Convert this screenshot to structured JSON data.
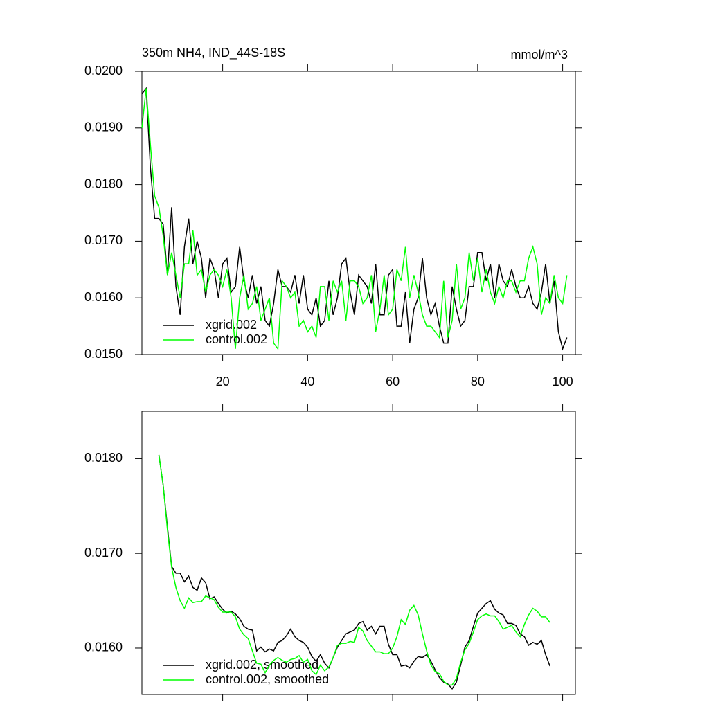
{
  "chart_data": [
    {
      "type": "line",
      "title": "350m NH4, IND_44S-18S",
      "units": "mmol/m^3",
      "x": [
        1,
        2,
        3,
        4,
        5,
        6,
        7,
        8,
        9,
        10,
        11,
        12,
        13,
        14,
        15,
        16,
        17,
        18,
        19,
        20,
        21,
        22,
        23,
        24,
        25,
        26,
        27,
        28,
        29,
        30,
        31,
        32,
        33,
        34,
        35,
        36,
        37,
        38,
        39,
        40,
        41,
        42,
        43,
        44,
        45,
        46,
        47,
        48,
        49,
        50,
        51,
        52,
        53,
        54,
        55,
        56,
        57,
        58,
        59,
        60,
        61,
        62,
        63,
        64,
        65,
        66,
        67,
        68,
        69,
        70,
        71,
        72,
        73,
        74,
        75,
        76,
        77,
        78,
        79,
        80,
        81,
        82,
        83,
        84,
        85,
        86,
        87,
        88,
        89,
        90,
        91,
        92,
        93,
        94,
        95,
        96,
        97,
        98,
        99,
        100,
        101
      ],
      "xlim": [
        1,
        103
      ],
      "xticks": [
        20,
        40,
        60,
        80,
        100
      ],
      "ylim": [
        0.015,
        0.02
      ],
      "yticks": [
        {
          "value": 0.015,
          "label": "0.0150"
        },
        {
          "value": 0.016,
          "label": "0.0160"
        },
        {
          "value": 0.017,
          "label": "0.0170"
        },
        {
          "value": 0.018,
          "label": "0.0180"
        },
        {
          "value": 0.019,
          "label": "0.0190"
        },
        {
          "value": 0.02,
          "label": "0.0200"
        }
      ],
      "legend": "lower left",
      "series": [
        {
          "name": "xgrid.002",
          "color": "#000000",
          "values": [
            0.0196,
            0.0197,
            0.0183,
            0.0174,
            0.0174,
            0.0173,
            0.0164,
            0.0176,
            0.0162,
            0.0157,
            0.0169,
            0.0174,
            0.0166,
            0.017,
            0.0167,
            0.016,
            0.0167,
            0.0165,
            0.016,
            0.0166,
            0.0167,
            0.0161,
            0.0162,
            0.0169,
            0.0163,
            0.016,
            0.0164,
            0.0159,
            0.0162,
            0.0156,
            0.0155,
            0.0159,
            0.0165,
            0.0162,
            0.0162,
            0.0161,
            0.0164,
            0.0159,
            0.0164,
            0.0158,
            0.0157,
            0.016,
            0.0155,
            0.0156,
            0.0163,
            0.0157,
            0.016,
            0.0166,
            0.0167,
            0.0161,
            0.0157,
            0.0164,
            0.0163,
            0.0162,
            0.0159,
            0.0166,
            0.0157,
            0.0157,
            0.0164,
            0.0165,
            0.0155,
            0.0155,
            0.0161,
            0.0152,
            0.0158,
            0.016,
            0.0167,
            0.016,
            0.0157,
            0.0159,
            0.0155,
            0.0152,
            0.0152,
            0.0162,
            0.0158,
            0.0155,
            0.0156,
            0.0162,
            0.0162,
            0.0168,
            0.0168,
            0.0163,
            0.0166,
            0.016,
            0.0166,
            0.0163,
            0.0162,
            0.0165,
            0.0162,
            0.016,
            0.016,
            0.0162,
            0.0159,
            0.0158,
            0.0161,
            0.0166,
            0.0159,
            0.0163,
            0.0154,
            0.0151,
            0.0153
          ]
        },
        {
          "name": "control.002",
          "color": "#00ff00",
          "values": [
            0.019,
            0.0197,
            0.0187,
            0.0178,
            0.0176,
            0.0171,
            0.0164,
            0.0168,
            0.0164,
            0.016,
            0.0166,
            0.0166,
            0.0172,
            0.0164,
            0.0165,
            0.0161,
            0.0164,
            0.0165,
            0.0164,
            0.0162,
            0.0165,
            0.016,
            0.0151,
            0.016,
            0.0164,
            0.0158,
            0.0159,
            0.0162,
            0.0156,
            0.0158,
            0.016,
            0.0152,
            0.0151,
            0.0163,
            0.0162,
            0.016,
            0.0161,
            0.0155,
            0.0156,
            0.0154,
            0.0155,
            0.0153,
            0.0162,
            0.0162,
            0.0156,
            0.0163,
            0.0161,
            0.0163,
            0.0156,
            0.0163,
            0.0163,
            0.0162,
            0.0159,
            0.016,
            0.0164,
            0.0154,
            0.0158,
            0.0164,
            0.0157,
            0.0158,
            0.0165,
            0.0163,
            0.0169,
            0.016,
            0.0164,
            0.0161,
            0.0157,
            0.0155,
            0.0155,
            0.0154,
            0.0153,
            0.0163,
            0.0153,
            0.0156,
            0.0166,
            0.0158,
            0.016,
            0.0168,
            0.0163,
            0.0167,
            0.0161,
            0.0165,
            0.0161,
            0.0159,
            0.0162,
            0.016,
            0.0163,
            0.0163,
            0.0161,
            0.0163,
            0.0163,
            0.0167,
            0.0169,
            0.0166,
            0.0157,
            0.016,
            0.0159,
            0.0164,
            0.016,
            0.0159,
            0.0164
          ]
        }
      ]
    },
    {
      "type": "line",
      "x": [
        5,
        6,
        7,
        8,
        9,
        10,
        11,
        12,
        13,
        14,
        15,
        16,
        17,
        18,
        19,
        20,
        21,
        22,
        23,
        24,
        25,
        26,
        27,
        28,
        29,
        30,
        31,
        32,
        33,
        34,
        35,
        36,
        37,
        38,
        39,
        40,
        41,
        42,
        43,
        44,
        45,
        46,
        47,
        48,
        49,
        50,
        51,
        52,
        53,
        54,
        55,
        56,
        57,
        58,
        59,
        60,
        61,
        62,
        63,
        64,
        65,
        66,
        67,
        68,
        69,
        70,
        71,
        72,
        73,
        74,
        75,
        76,
        77,
        78,
        79,
        80,
        81,
        82,
        83,
        84,
        85,
        86,
        87,
        88,
        89,
        90,
        91,
        92,
        93,
        94,
        95,
        96,
        97
      ],
      "xlim": [
        1,
        103
      ],
      "xticks": [
        20,
        40,
        60,
        80,
        100
      ],
      "ylim": [
        0.01551,
        0.0185
      ],
      "yticks": [
        {
          "value": 0.016,
          "label": "0.0160"
        },
        {
          "value": 0.017,
          "label": "0.0170"
        },
        {
          "value": 0.018,
          "label": "0.0180"
        }
      ],
      "legend": "lower left",
      "series": [
        {
          "name": "xgrid.002, smoothed",
          "color": "#000000",
          "values": [
            0.01804,
            0.01772,
            0.01728,
            0.01686,
            0.01679,
            0.01679,
            0.0167,
            0.01676,
            0.01664,
            0.01661,
            0.01674,
            0.01669,
            0.01652,
            0.01654,
            0.01647,
            0.01641,
            0.01637,
            0.01639,
            0.01636,
            0.01631,
            0.01623,
            0.0162,
            0.01619,
            0.01597,
            0.01601,
            0.01596,
            0.01599,
            0.01597,
            0.01606,
            0.01608,
            0.01613,
            0.0162,
            0.01612,
            0.01608,
            0.01606,
            0.01601,
            0.01591,
            0.01586,
            0.01593,
            0.01584,
            0.01579,
            0.0159,
            0.01601,
            0.01608,
            0.01615,
            0.01617,
            0.01619,
            0.01626,
            0.01628,
            0.01619,
            0.01623,
            0.01615,
            0.01623,
            0.01623,
            0.01604,
            0.01593,
            0.01593,
            0.01581,
            0.01582,
            0.01579,
            0.01586,
            0.01591,
            0.0159,
            0.01593,
            0.01586,
            0.01577,
            0.01569,
            0.01564,
            0.01562,
            0.01557,
            0.01564,
            0.01582,
            0.01601,
            0.01608,
            0.01623,
            0.01637,
            0.01642,
            0.01647,
            0.0165,
            0.01641,
            0.01637,
            0.01635,
            0.01626,
            0.01626,
            0.01624,
            0.01615,
            0.01612,
            0.01603,
            0.01606,
            0.01604,
            0.01608,
            0.01593,
            0.01581
          ]
        },
        {
          "name": "control.002, smoothed",
          "color": "#00ff00",
          "values": [
            0.01804,
            0.01772,
            0.01725,
            0.01685,
            0.01664,
            0.0165,
            0.01642,
            0.01653,
            0.01648,
            0.01649,
            0.01649,
            0.01655,
            0.01653,
            0.01651,
            0.01643,
            0.01638,
            0.01638,
            0.01638,
            0.01633,
            0.0162,
            0.01614,
            0.0161,
            0.01597,
            0.01584,
            0.01583,
            0.01574,
            0.01582,
            0.01587,
            0.0159,
            0.01587,
            0.01585,
            0.01588,
            0.01589,
            0.01592,
            0.01585,
            0.01588,
            0.01576,
            0.01572,
            0.01582,
            0.01576,
            0.0158,
            0.0159,
            0.01603,
            0.01605,
            0.01605,
            0.01607,
            0.01606,
            0.01622,
            0.01618,
            0.01608,
            0.01602,
            0.01596,
            0.01596,
            0.01594,
            0.01594,
            0.016,
            0.01612,
            0.0163,
            0.01625,
            0.0164,
            0.01645,
            0.01635,
            0.01615,
            0.01597,
            0.01582,
            0.01575,
            0.01573,
            0.01565,
            0.01561,
            0.01561,
            0.01568,
            0.01585,
            0.01598,
            0.01605,
            0.01617,
            0.0163,
            0.01634,
            0.01636,
            0.01634,
            0.01634,
            0.01628,
            0.0162,
            0.01622,
            0.01624,
            0.01617,
            0.01612,
            0.01625,
            0.01635,
            0.01642,
            0.01639,
            0.01633,
            0.01633,
            0.01627
          ]
        }
      ]
    }
  ]
}
